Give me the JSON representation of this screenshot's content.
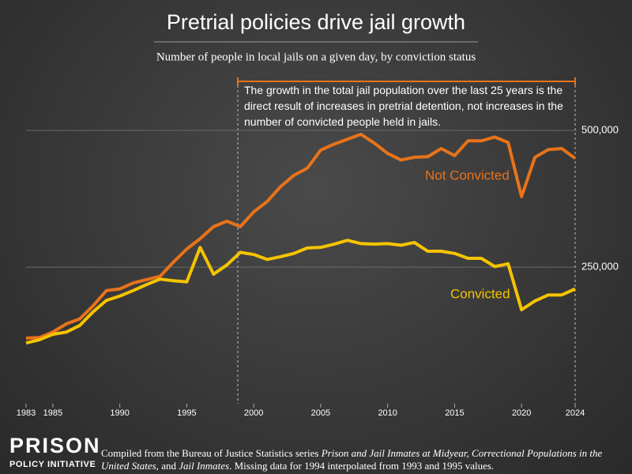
{
  "chart_data": {
    "type": "line",
    "title": "Pretrial policies drive jail growth",
    "subtitle": "Number of people in local jails on a given day, by conviction status",
    "annotation": "The growth in the total jail population over the last 25 years is the direct result of increases in pretrial detention, not increases in the number of convicted people held in jails.",
    "x": [
      1983,
      1984,
      1985,
      1986,
      1987,
      1988,
      1989,
      1990,
      1991,
      1992,
      1993,
      1994,
      1995,
      1996,
      1997,
      1998,
      1999,
      2000,
      2001,
      2002,
      2003,
      2004,
      2005,
      2006,
      2007,
      2008,
      2009,
      2010,
      2011,
      2012,
      2013,
      2014,
      2015,
      2016,
      2017,
      2018,
      2019,
      2020,
      2021,
      2022,
      2023,
      2024
    ],
    "series": [
      {
        "name": "Not Convicted",
        "color": "#e8731a",
        "values": [
          120000,
          121000,
          131000,
          146000,
          155000,
          179000,
          207000,
          210000,
          221000,
          227000,
          233000,
          259000,
          283000,
          302000,
          324000,
          334000,
          324000,
          351000,
          370000,
          397000,
          418000,
          431000,
          464000,
          475000,
          484000,
          493000,
          477000,
          458000,
          446000,
          451000,
          452000,
          467000,
          454000,
          481000,
          481000,
          488000,
          478000,
          379000,
          451000,
          465000,
          467000,
          449000
        ]
      },
      {
        "name": "Convicted",
        "color": "#f5c400",
        "values": [
          111000,
          117000,
          127000,
          131000,
          143000,
          168000,
          189000,
          197000,
          207000,
          218000,
          228000,
          225000,
          223000,
          286000,
          237000,
          254000,
          277000,
          273000,
          264000,
          269000,
          275000,
          285000,
          286000,
          292000,
          299000,
          293000,
          292000,
          293000,
          290000,
          295000,
          279000,
          279000,
          275000,
          266000,
          266000,
          251000,
          256000,
          172000,
          188000,
          199000,
          199000,
          210000
        ]
      }
    ],
    "xlim": [
      1983,
      2024
    ],
    "xticks": [
      1983,
      1985,
      1990,
      1995,
      2000,
      2005,
      2010,
      2015,
      2020,
      2024
    ],
    "ylim": [
      0,
      600000
    ],
    "yticks": [
      {
        "value": 250000,
        "label": "250,000"
      },
      {
        "value": 500000,
        "label": "500,000"
      }
    ],
    "grid": true,
    "source": [
      "Compiled from the Bureau of Justice Statistics series ",
      "Prison and Jail Inmates at Midyear, Correctional Populations in the United States,",
      " and ",
      "Jail Inmates",
      ". Missing data for 1994 interpolated from 1993 and 1995 values."
    ],
    "logo": [
      "PRISON",
      "POLICY INITIATIVE"
    ]
  }
}
